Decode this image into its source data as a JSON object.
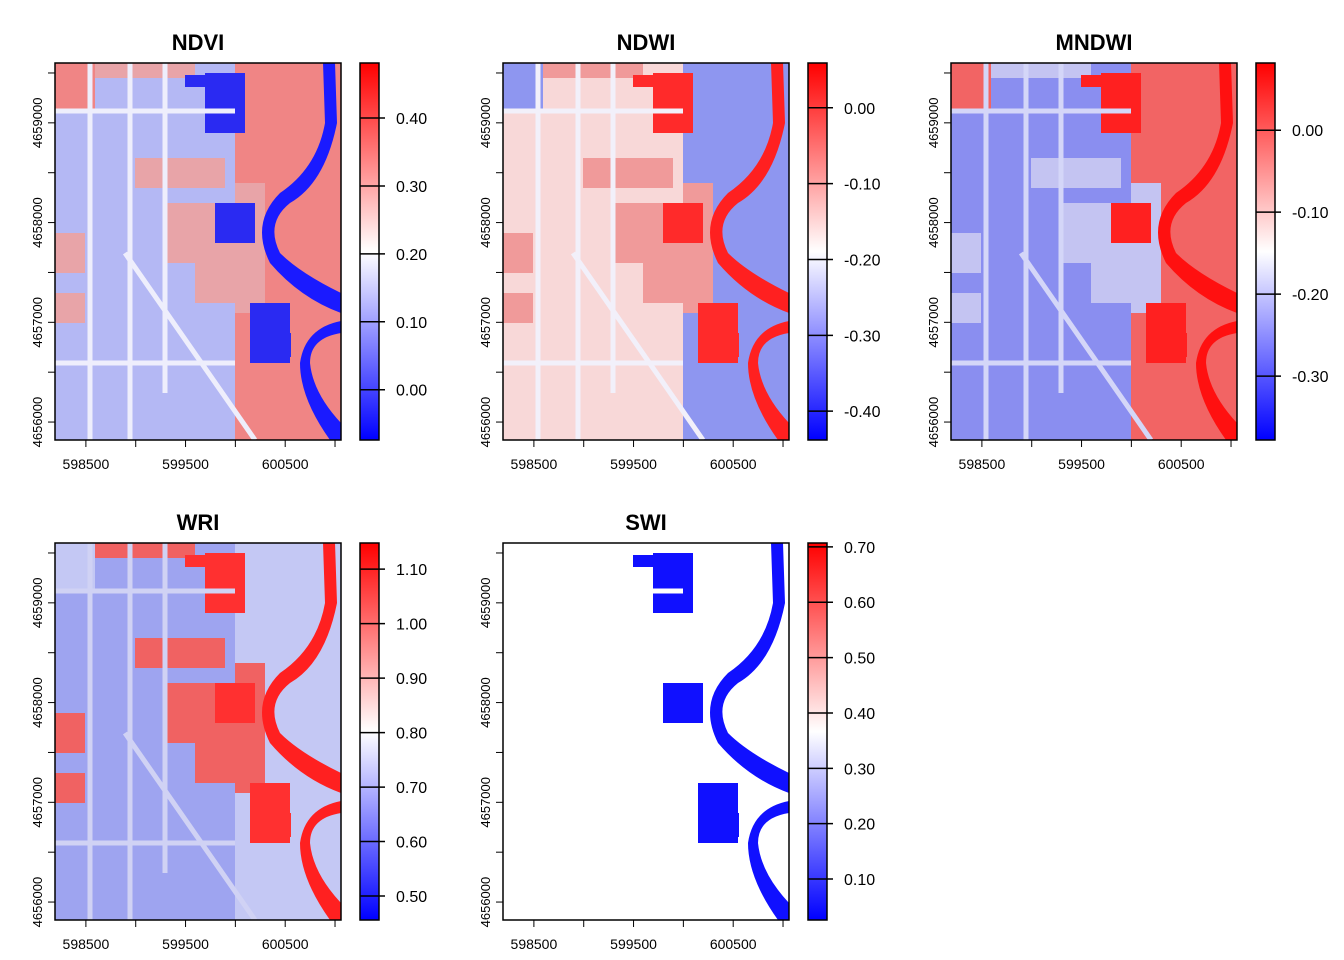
{
  "chart_data": [
    {
      "type": "heatmap",
      "title": "NDVI",
      "xlim": [
        598190,
        601060
      ],
      "ylim": [
        4655820,
        4659600
      ],
      "xticks": [
        598500,
        599000,
        599500,
        600000,
        600500,
        601000
      ],
      "xtick_labels": [
        "598500",
        "599500",
        "600500"
      ],
      "yticks": [
        4656000,
        4656500,
        4657000,
        4657500,
        4658000,
        4658500,
        4659000,
        4659500
      ],
      "ytick_labels": [
        "4656000",
        "4657000",
        "4658000",
        "4659000"
      ],
      "colorbar": {
        "range": [
          -0.074,
          0.481
        ],
        "ticks": [
          "0.00",
          "0.10",
          "0.20",
          "0.30",
          "0.40"
        ],
        "colors": [
          "#0000ff",
          "#ffffff",
          "#ff0000"
        ]
      },
      "palette": {
        "field": "#b4b8f4",
        "road": "#eeeefc",
        "veg": "#f08585",
        "urban": "#e8a4a8",
        "water": "#1a1aff",
        "pond": "#2a2af2"
      }
    },
    {
      "type": "heatmap",
      "title": "NDWI",
      "xlim": [
        598190,
        601060
      ],
      "ylim": [
        4655820,
        4659600
      ],
      "xticks": [
        598500,
        599000,
        599500,
        600000,
        600500,
        601000
      ],
      "xtick_labels": [
        "598500",
        "599500",
        "600500"
      ],
      "yticks": [
        4656000,
        4656500,
        4657000,
        4657500,
        4658000,
        4658500,
        4659000,
        4659500
      ],
      "ytick_labels": [
        "4656000",
        "4657000",
        "4658000",
        "4659000"
      ],
      "colorbar": {
        "range": [
          -0.438,
          0.059
        ],
        "ticks": [
          "-0.40",
          "-0.30",
          "-0.20",
          "-0.10",
          "0.00"
        ],
        "colors": [
          "#0000ff",
          "#ffffff",
          "#ff0000"
        ]
      },
      "palette": {
        "field": "#f8d8d8",
        "road": "#f2f0fa",
        "veg": "#8e96f0",
        "urban": "#f09a9a",
        "water": "#ff2020",
        "pond": "#ff2a2a"
      }
    },
    {
      "type": "heatmap",
      "title": "MNDWI",
      "xlim": [
        598190,
        601060
      ],
      "ylim": [
        4655820,
        4659600
      ],
      "xticks": [
        598500,
        599000,
        599500,
        600000,
        600500,
        601000
      ],
      "xtick_labels": [
        "598500",
        "599500",
        "600500"
      ],
      "yticks": [
        4656000,
        4656500,
        4657000,
        4657500,
        4658000,
        4658500,
        4659000,
        4659500
      ],
      "ytick_labels": [
        "4656000",
        "4657000",
        "4658000",
        "4659000"
      ],
      "colorbar": {
        "range": [
          -0.378,
          0.082
        ],
        "ticks": [
          "-0.30",
          "-0.20",
          "-0.10",
          "0.00"
        ],
        "colors": [
          "#0000ff",
          "#ffffff",
          "#ff0000"
        ]
      },
      "palette": {
        "field": "#8a8ef0",
        "road": "#d4d6f8",
        "veg": "#f26464",
        "urban": "#c4c4f2",
        "water": "#ff1010",
        "pond": "#ff2020"
      }
    },
    {
      "type": "heatmap",
      "title": "WRI",
      "xlim": [
        598190,
        601060
      ],
      "ylim": [
        4655820,
        4659600
      ],
      "xticks": [
        598500,
        599000,
        599500,
        600000,
        600500,
        601000
      ],
      "xtick_labels": [
        "598500",
        "599500",
        "600500"
      ],
      "yticks": [
        4656000,
        4656500,
        4657000,
        4657500,
        4658000,
        4658500,
        4659000,
        4659500
      ],
      "ytick_labels": [
        "4656000",
        "4657000",
        "4658000",
        "4659000"
      ],
      "colorbar": {
        "range": [
          0.456,
          1.148
        ],
        "ticks": [
          "0.50",
          "0.60",
          "0.70",
          "0.80",
          "0.90",
          "1.00",
          "1.10"
        ],
        "colors": [
          "#0000ff",
          "#ffffff",
          "#ff0000"
        ]
      },
      "palette": {
        "field": "#9ea4f0",
        "road": "#d0d2f4",
        "veg": "#c4c8f4",
        "urban": "#f06262",
        "water": "#ff2020",
        "pond": "#ff3030"
      }
    },
    {
      "type": "heatmap",
      "title": "SWI",
      "xlim": [
        598190,
        601060
      ],
      "ylim": [
        4655820,
        4659600
      ],
      "xticks": [
        598500,
        599000,
        599500,
        600000,
        600500,
        601000
      ],
      "xtick_labels": [
        "598500",
        "599500",
        "600500"
      ],
      "yticks": [
        4656000,
        4656500,
        4657000,
        4657500,
        4658000,
        4658500,
        4659000,
        4659500
      ],
      "ytick_labels": [
        "4656000",
        "4657000",
        "4658000",
        "4659000"
      ],
      "colorbar": {
        "range": [
          0.026,
          0.707
        ],
        "ticks": [
          "0.10",
          "0.20",
          "0.30",
          "0.40",
          "0.50",
          "0.60",
          "0.70"
        ],
        "colors": [
          "#0000ff",
          "#ffffff",
          "#ff0000"
        ]
      },
      "palette": {
        "field": "#ffffff",
        "road": "#ffffff",
        "veg": "#ffffff",
        "urban": "#ffffff",
        "water": "#1010ff",
        "pond": "#1010ff"
      }
    }
  ]
}
